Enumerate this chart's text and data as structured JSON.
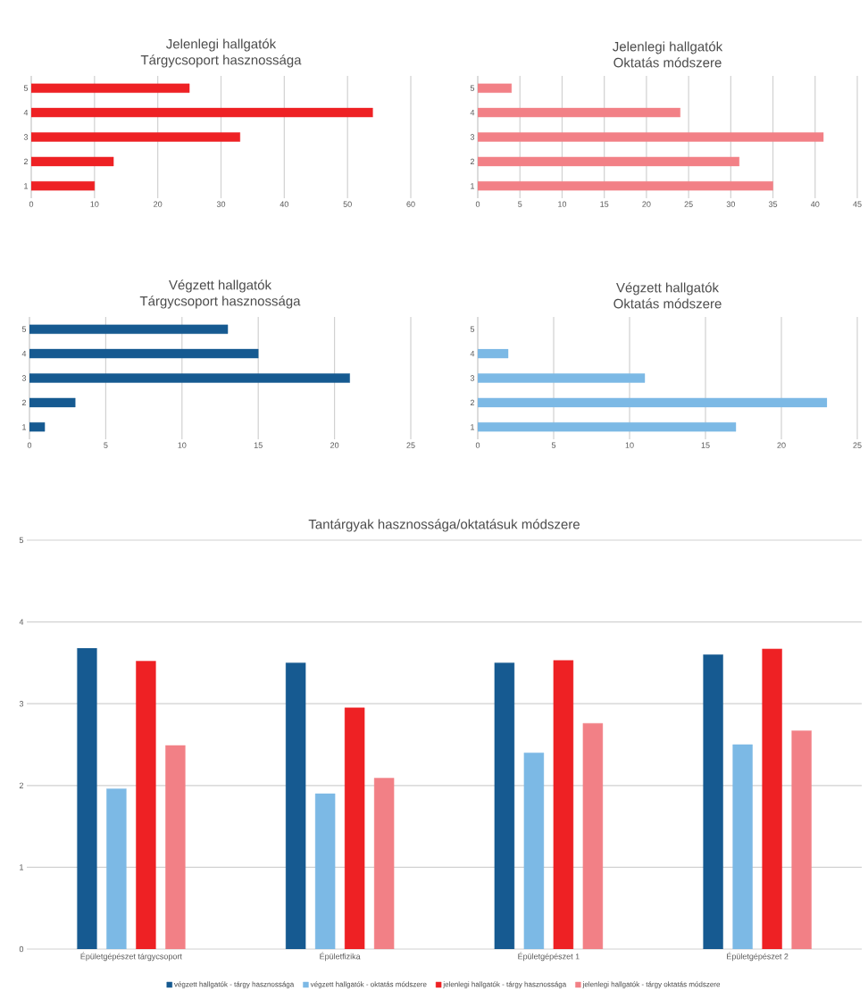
{
  "chart_data": [
    {
      "type": "bar",
      "orientation": "horizontal",
      "title": "Jelenlegi hallgatók",
      "subtitle": "Tárgycsoport hasznossága",
      "categories": [
        "5",
        "4",
        "3",
        "2",
        "1"
      ],
      "values": [
        25,
        54,
        33,
        13,
        10
      ],
      "color": "#ee2124",
      "xlim": [
        0,
        60
      ],
      "xticks": [
        0,
        10,
        20,
        30,
        40,
        50,
        60
      ],
      "grid": "x"
    },
    {
      "type": "bar",
      "orientation": "horizontal",
      "title": "Jelenlegi hallgatók",
      "subtitle": "Oktatás módszere",
      "categories": [
        "5",
        "4",
        "3",
        "2",
        "1"
      ],
      "values": [
        4,
        24,
        41,
        31,
        35
      ],
      "color": "#f28086",
      "xlim": [
        0,
        45
      ],
      "xticks": [
        0,
        5,
        10,
        15,
        20,
        25,
        30,
        35,
        40,
        45
      ],
      "grid": "x"
    },
    {
      "type": "bar",
      "orientation": "horizontal",
      "title": "Végzett hallgatók",
      "subtitle": "Tárgycsoport hasznossága",
      "categories": [
        "5",
        "4",
        "3",
        "2",
        "1"
      ],
      "values": [
        13,
        15,
        21,
        3,
        1
      ],
      "color": "#165a91",
      "xlim": [
        0,
        25
      ],
      "xticks": [
        0,
        5,
        10,
        15,
        20,
        25
      ],
      "grid": "x"
    },
    {
      "type": "bar",
      "orientation": "horizontal",
      "title": "Végzett hallgatók",
      "subtitle": "Oktatás módszere",
      "categories": [
        "5",
        "4",
        "3",
        "2",
        "1"
      ],
      "values": [
        null,
        2,
        11,
        23,
        17
      ],
      "color": "#7cb9e5",
      "xlim": [
        0,
        25
      ],
      "xticks": [
        0,
        5,
        10,
        15,
        20,
        25
      ],
      "grid": "x"
    },
    {
      "type": "bar",
      "title": "Tantárgyak hasznossága/oktatásuk módszere",
      "categories": [
        "Épületgépészet tárgycsoport",
        "Épületfizika",
        "Épületgépészet 1",
        "Épületgépészet 2"
      ],
      "ylim": [
        0,
        5
      ],
      "yticks": [
        0,
        1,
        2,
        3,
        4,
        5
      ],
      "grid": "y",
      "legend": "bottom",
      "series": [
        {
          "name": "végzett hallgatók - tárgy hasznossága",
          "color": "#165a91",
          "values": [
            3.68,
            3.5,
            3.5,
            3.6
          ]
        },
        {
          "name": "végzett hallgatók - oktatás módszere",
          "color": "#7cb9e5",
          "values": [
            1.96,
            1.9,
            2.4,
            2.5
          ]
        },
        {
          "name": "jelenlegi hallgatók - tárgy hasznossága",
          "color": "#ee2124",
          "values": [
            3.52,
            2.95,
            3.53,
            3.67
          ]
        },
        {
          "name": "jelenlegi hallgatók - tárgy  oktatás módszere",
          "color": "#f28086",
          "values": [
            2.49,
            2.09,
            2.76,
            2.67
          ]
        }
      ]
    }
  ]
}
